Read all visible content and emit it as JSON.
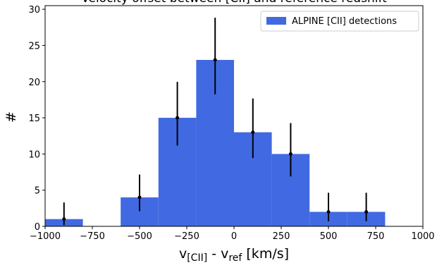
{
  "chart_data": {
    "type": "histogram",
    "title": "Velocity offset between [CII] and reference redshift",
    "xlabel": {
      "parts": [
        "v",
        "[CII]",
        " - v",
        "ref",
        " [km/s]"
      ]
    },
    "ylabel": "#",
    "bins": [
      -1000,
      -800,
      -600,
      -400,
      -200,
      0,
      200,
      400,
      600,
      800
    ],
    "series": [
      {
        "name": "ALPINE [CII] detections",
        "color": "#4169e1",
        "values": [
          1,
          0,
          4,
          15,
          23,
          13,
          10,
          2,
          2
        ]
      }
    ],
    "errorbars": {
      "color": "#000000",
      "x": [
        -900,
        -500,
        -300,
        -100,
        100,
        300,
        500,
        700
      ],
      "y": [
        1,
        4,
        15,
        23,
        13,
        10,
        2,
        2
      ],
      "yerr_lower": [
        0.83,
        1.91,
        3.83,
        4.75,
        3.56,
        3.11,
        1.29,
        1.29
      ],
      "yerr_upper": [
        2.3,
        3.16,
        4.96,
        5.83,
        4.67,
        4.27,
        2.64,
        2.64
      ]
    },
    "xlim": [
      -1000,
      1000
    ],
    "xticks": [
      {
        "value": -1000,
        "label": "−1000"
      },
      {
        "value": -750,
        "label": "−750"
      },
      {
        "value": -500,
        "label": "−500"
      },
      {
        "value": -250,
        "label": "−250"
      },
      0,
      250,
      500,
      750,
      1000
    ],
    "ylim": [
      0,
      30.5
    ],
    "yticks": [
      0,
      5,
      10,
      15,
      20,
      25,
      30
    ],
    "legend": "upper right"
  }
}
